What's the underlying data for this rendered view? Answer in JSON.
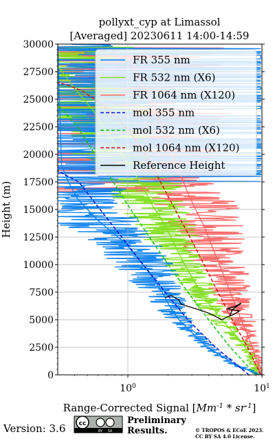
{
  "chart_data": {
    "type": "line",
    "title": "pollyxt_cyp at Limassol",
    "subtitle": "[Averaged] 20230611 14:00-14:59",
    "xlabel_prefix": "Range-Corrected Signal [",
    "xlabel_unit": "Mm^{-1}*sr^{-1}",
    "xlabel_suffix": "]",
    "ylabel": "Height (m)",
    "x_scale": "log",
    "xlim": [
      0.3,
      10
    ],
    "ylim": [
      0,
      30000
    ],
    "grid": true,
    "legend_position": "upper-right",
    "x_ticks": [
      {
        "value": 1,
        "label": "10",
        "exp": "0"
      },
      {
        "value": 10,
        "label": "10",
        "exp": "1"
      }
    ],
    "y_ticks": [
      {
        "value": 0,
        "label": "0"
      },
      {
        "value": 2500,
        "label": "2500"
      },
      {
        "value": 5000,
        "label": "5000"
      },
      {
        "value": 7500,
        "label": "7500"
      },
      {
        "value": 10000,
        "label": "10000"
      },
      {
        "value": 12500,
        "label": "12500"
      },
      {
        "value": 15000,
        "label": "15000"
      },
      {
        "value": 17500,
        "label": "17500"
      },
      {
        "value": 20000,
        "label": "20000"
      },
      {
        "value": 22500,
        "label": "22500"
      },
      {
        "value": 25000,
        "label": "25000"
      },
      {
        "value": 27500,
        "label": "27500"
      },
      {
        "value": 30000,
        "label": "30000"
      }
    ],
    "series": [
      {
        "name": "FR 355 nm",
        "style": "solid",
        "color": "#0a7fef",
        "x": [
          9.5,
          6.2,
          3.9,
          2.9,
          2.4,
          2.1,
          1.8,
          1.5,
          1.2,
          0.95,
          0.75,
          0.6,
          0.5,
          0.42,
          0.36,
          0.32,
          0.3
        ],
        "y": [
          0,
          1000,
          2500,
          4000,
          5000,
          6000,
          7500,
          9000,
          10500,
          12000,
          13000,
          14000,
          15000,
          16000,
          17500,
          19000,
          30000
        ]
      },
      {
        "name": "FR 532 nm (X6)",
        "style": "solid",
        "color": "#7fdf1a",
        "x": [
          9.5,
          8.0,
          6.5,
          5.0,
          4.0,
          3.3,
          2.8,
          2.4,
          2.1,
          1.8,
          1.5,
          1.3,
          1.1,
          0.9,
          0.7,
          0.55,
          0.4,
          0.3
        ],
        "y": [
          0,
          2000,
          3500,
          5000,
          6500,
          8000,
          9500,
          11000,
          12500,
          14000,
          15500,
          17000,
          18500,
          20000,
          22000,
          24000,
          26000,
          28000
        ]
      },
      {
        "name": "FR 1064 nm (X120)",
        "style": "solid",
        "color": "#fa6464",
        "x": [
          9.8,
          8.5,
          7.0,
          5.8,
          5.0,
          4.3,
          3.7,
          3.2,
          2.8,
          2.5,
          2.2,
          2.0,
          1.8,
          1.6,
          1.4,
          1.2,
          1.0
        ],
        "y": [
          0,
          2500,
          5000,
          7500,
          9500,
          11500,
          13500,
          15000,
          16500,
          18000,
          19500,
          21000,
          22500,
          24000,
          25500,
          27000,
          29000
        ]
      },
      {
        "name": "mol 355 nm",
        "style": "dashed",
        "color": "#1010d0",
        "x": [
          8.0,
          4.5,
          2.8,
          1.9,
          1.3,
          0.9,
          0.62,
          0.43,
          0.3
        ],
        "y": [
          0,
          2500,
          5000,
          7500,
          10000,
          12500,
          15000,
          17500,
          18500
        ]
      },
      {
        "name": "mol 532 nm (X6)",
        "style": "dashed",
        "color": "#10c010",
        "x": [
          9.0,
          5.8,
          4.0,
          2.8,
          2.0,
          1.45,
          1.05,
          0.78,
          0.57,
          0.42,
          0.3
        ],
        "y": [
          0,
          2500,
          5000,
          7500,
          10000,
          12500,
          15000,
          17500,
          20000,
          22500,
          24500
        ]
      },
      {
        "name": "mol 1064 nm (X120)",
        "style": "dashed",
        "color": "#e01010",
        "x": [
          9.8,
          7.8,
          6.0,
          4.7,
          3.7,
          2.9,
          2.25,
          1.75,
          1.35,
          1.05,
          0.8,
          0.6,
          0.45,
          0.35,
          0.3
        ],
        "y": [
          0,
          2500,
          5000,
          7500,
          10000,
          12500,
          15000,
          17500,
          20000,
          22000,
          23500,
          24800,
          25800,
          26300,
          26500
        ]
      },
      {
        "name": "Reference Height",
        "style": "solid",
        "color": "#000000",
        "x": [
          1.9,
          2.1,
          2.4,
          2.5,
          3.2,
          3.6,
          4.0,
          4.5,
          5.0,
          5.4,
          6.2,
          6.8,
          5.5,
          6.3,
          7.0,
          6.0,
          5.8
        ],
        "y": [
          7000,
          7200,
          6800,
          6400,
          6000,
          5800,
          5600,
          5300,
          5000,
          5200,
          5500,
          5800,
          6000,
          6200,
          6500,
          5900,
          5400
        ]
      }
    ]
  },
  "footer": {
    "version": "Version: 3.6",
    "license_badge": [
      "cc",
      "BY",
      "SA"
    ],
    "preliminary": [
      "Preliminary",
      "Results."
    ],
    "copyright": [
      "© TROPOS & ECoE 2023.",
      "CC BY SA 4.0 License."
    ]
  }
}
